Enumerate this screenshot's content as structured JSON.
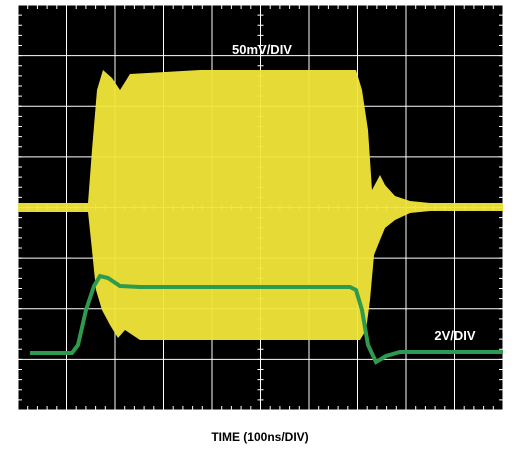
{
  "trace_labels": {
    "upper": "50mV/DIV",
    "lower": "2V/DIV"
  },
  "caption": "TIME (100ns/DIV)"
}
